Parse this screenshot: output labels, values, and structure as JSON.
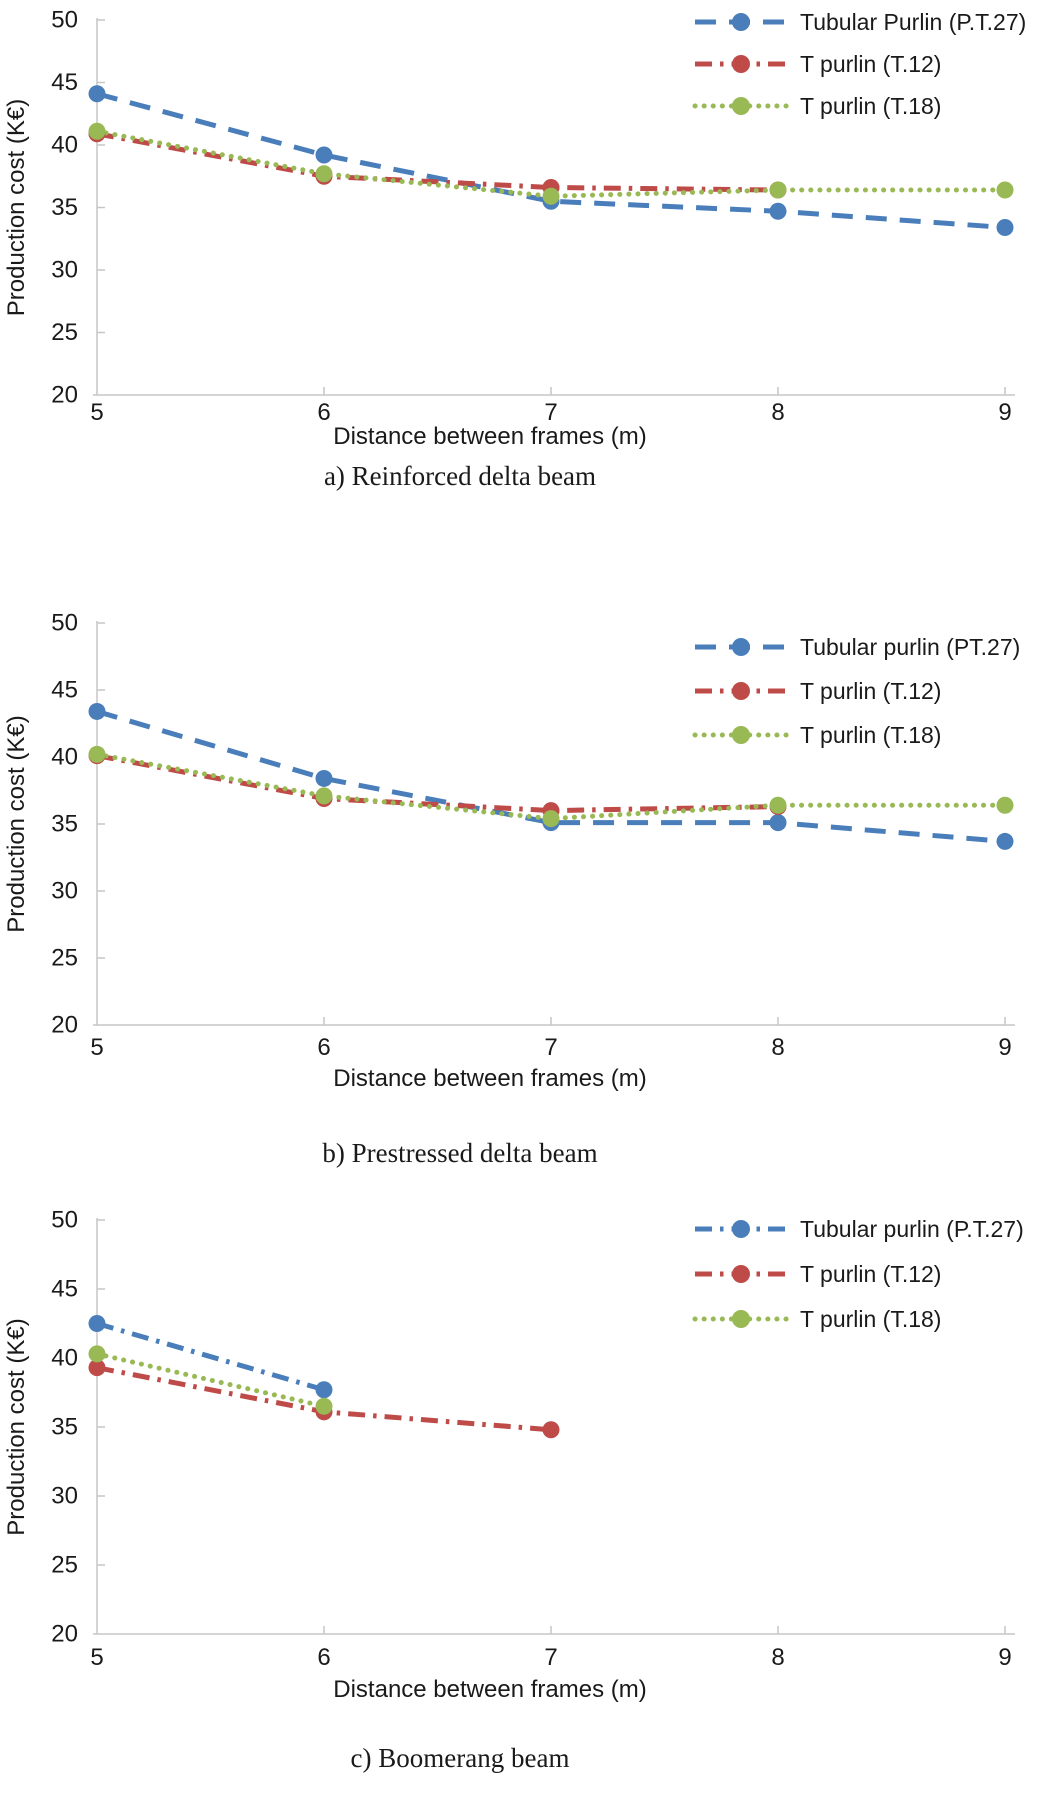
{
  "colors": {
    "series_blue": "#4a7ebb",
    "series_red": "#be4b48",
    "series_green": "#98b954",
    "axis": "#c6c6c6",
    "text": "#1a1a1a"
  },
  "chart_data": [
    {
      "type": "line",
      "caption": "a) Reinforced delta beam",
      "xlabel": "Distance between frames (m)",
      "ylabel": "Production cost (K€)",
      "xticks": [
        5,
        6,
        7,
        8,
        9
      ],
      "yticks": [
        20,
        25,
        30,
        35,
        40,
        45,
        50
      ],
      "xlim": [
        5,
        9
      ],
      "ylim": [
        20,
        50
      ],
      "grid": false,
      "legend_position": "top-right",
      "series": [
        {
          "name": "Tubular Purlin (P.T.27)",
          "color": "#4a7ebb",
          "line_style": "long-dash",
          "marker": "circle",
          "x": [
            5,
            6,
            7,
            8,
            9
          ],
          "y": [
            44.1,
            39.2,
            35.5,
            34.7,
            33.4
          ]
        },
        {
          "name": "T purlin (T.12)",
          "color": "#be4b48",
          "line_style": "dash-dot",
          "marker": "circle",
          "x": [
            5,
            6,
            7,
            8
          ],
          "y": [
            40.9,
            37.5,
            36.6,
            36.4
          ]
        },
        {
          "name": "T purlin (T.18)",
          "color": "#98b954",
          "line_style": "dot",
          "marker": "circle",
          "x": [
            5,
            6,
            7,
            8,
            9
          ],
          "y": [
            41.1,
            37.7,
            35.9,
            36.4,
            36.4
          ]
        }
      ]
    },
    {
      "type": "line",
      "caption": "b) Prestressed delta beam",
      "xlabel": "Distance between frames (m)",
      "ylabel": "Production cost (K€)",
      "xticks": [
        5,
        6,
        7,
        8,
        9
      ],
      "yticks": [
        20,
        25,
        30,
        35,
        40,
        45,
        50
      ],
      "xlim": [
        5,
        9
      ],
      "ylim": [
        20,
        50
      ],
      "grid": false,
      "legend_position": "top-right",
      "series": [
        {
          "name": "Tubular purlin (PT.27)",
          "color": "#4a7ebb",
          "line_style": "long-dash",
          "marker": "circle",
          "x": [
            5,
            6,
            7,
            8,
            9
          ],
          "y": [
            43.4,
            38.4,
            35.1,
            35.1,
            33.7
          ]
        },
        {
          "name": "T purlin (T.12)",
          "color": "#be4b48",
          "line_style": "dash-dot",
          "marker": "circle",
          "x": [
            5,
            6,
            7,
            8
          ],
          "y": [
            40.1,
            36.9,
            36.0,
            36.3
          ]
        },
        {
          "name": "T purlin (T.18)",
          "color": "#98b954",
          "line_style": "dot",
          "marker": "circle",
          "x": [
            5,
            6,
            7,
            8,
            9
          ],
          "y": [
            40.2,
            37.1,
            35.4,
            36.4,
            36.4
          ]
        }
      ]
    },
    {
      "type": "line",
      "caption": "c) Boomerang beam",
      "xlabel": "Distance between frames (m)",
      "ylabel": "Production cost (K€)",
      "xticks": [
        5,
        6,
        7,
        8,
        9
      ],
      "yticks": [
        20,
        25,
        30,
        35,
        40,
        45,
        50
      ],
      "xlim": [
        5,
        9
      ],
      "ylim": [
        20,
        50
      ],
      "grid": false,
      "legend_position": "top-right",
      "series": [
        {
          "name": "Tubular purlin (P.T.27)",
          "color": "#4a7ebb",
          "line_style": "dash-dot",
          "marker": "circle",
          "x": [
            5,
            6
          ],
          "y": [
            42.5,
            37.7
          ]
        },
        {
          "name": "T purlin (T.12)",
          "color": "#be4b48",
          "line_style": "dash-dot",
          "marker": "circle",
          "x": [
            5,
            6,
            7
          ],
          "y": [
            39.3,
            36.1,
            34.8
          ]
        },
        {
          "name": "T purlin (T.18)",
          "color": "#98b954",
          "line_style": "dot",
          "marker": "circle",
          "x": [
            5,
            6
          ],
          "y": [
            40.3,
            36.5
          ]
        }
      ]
    }
  ]
}
